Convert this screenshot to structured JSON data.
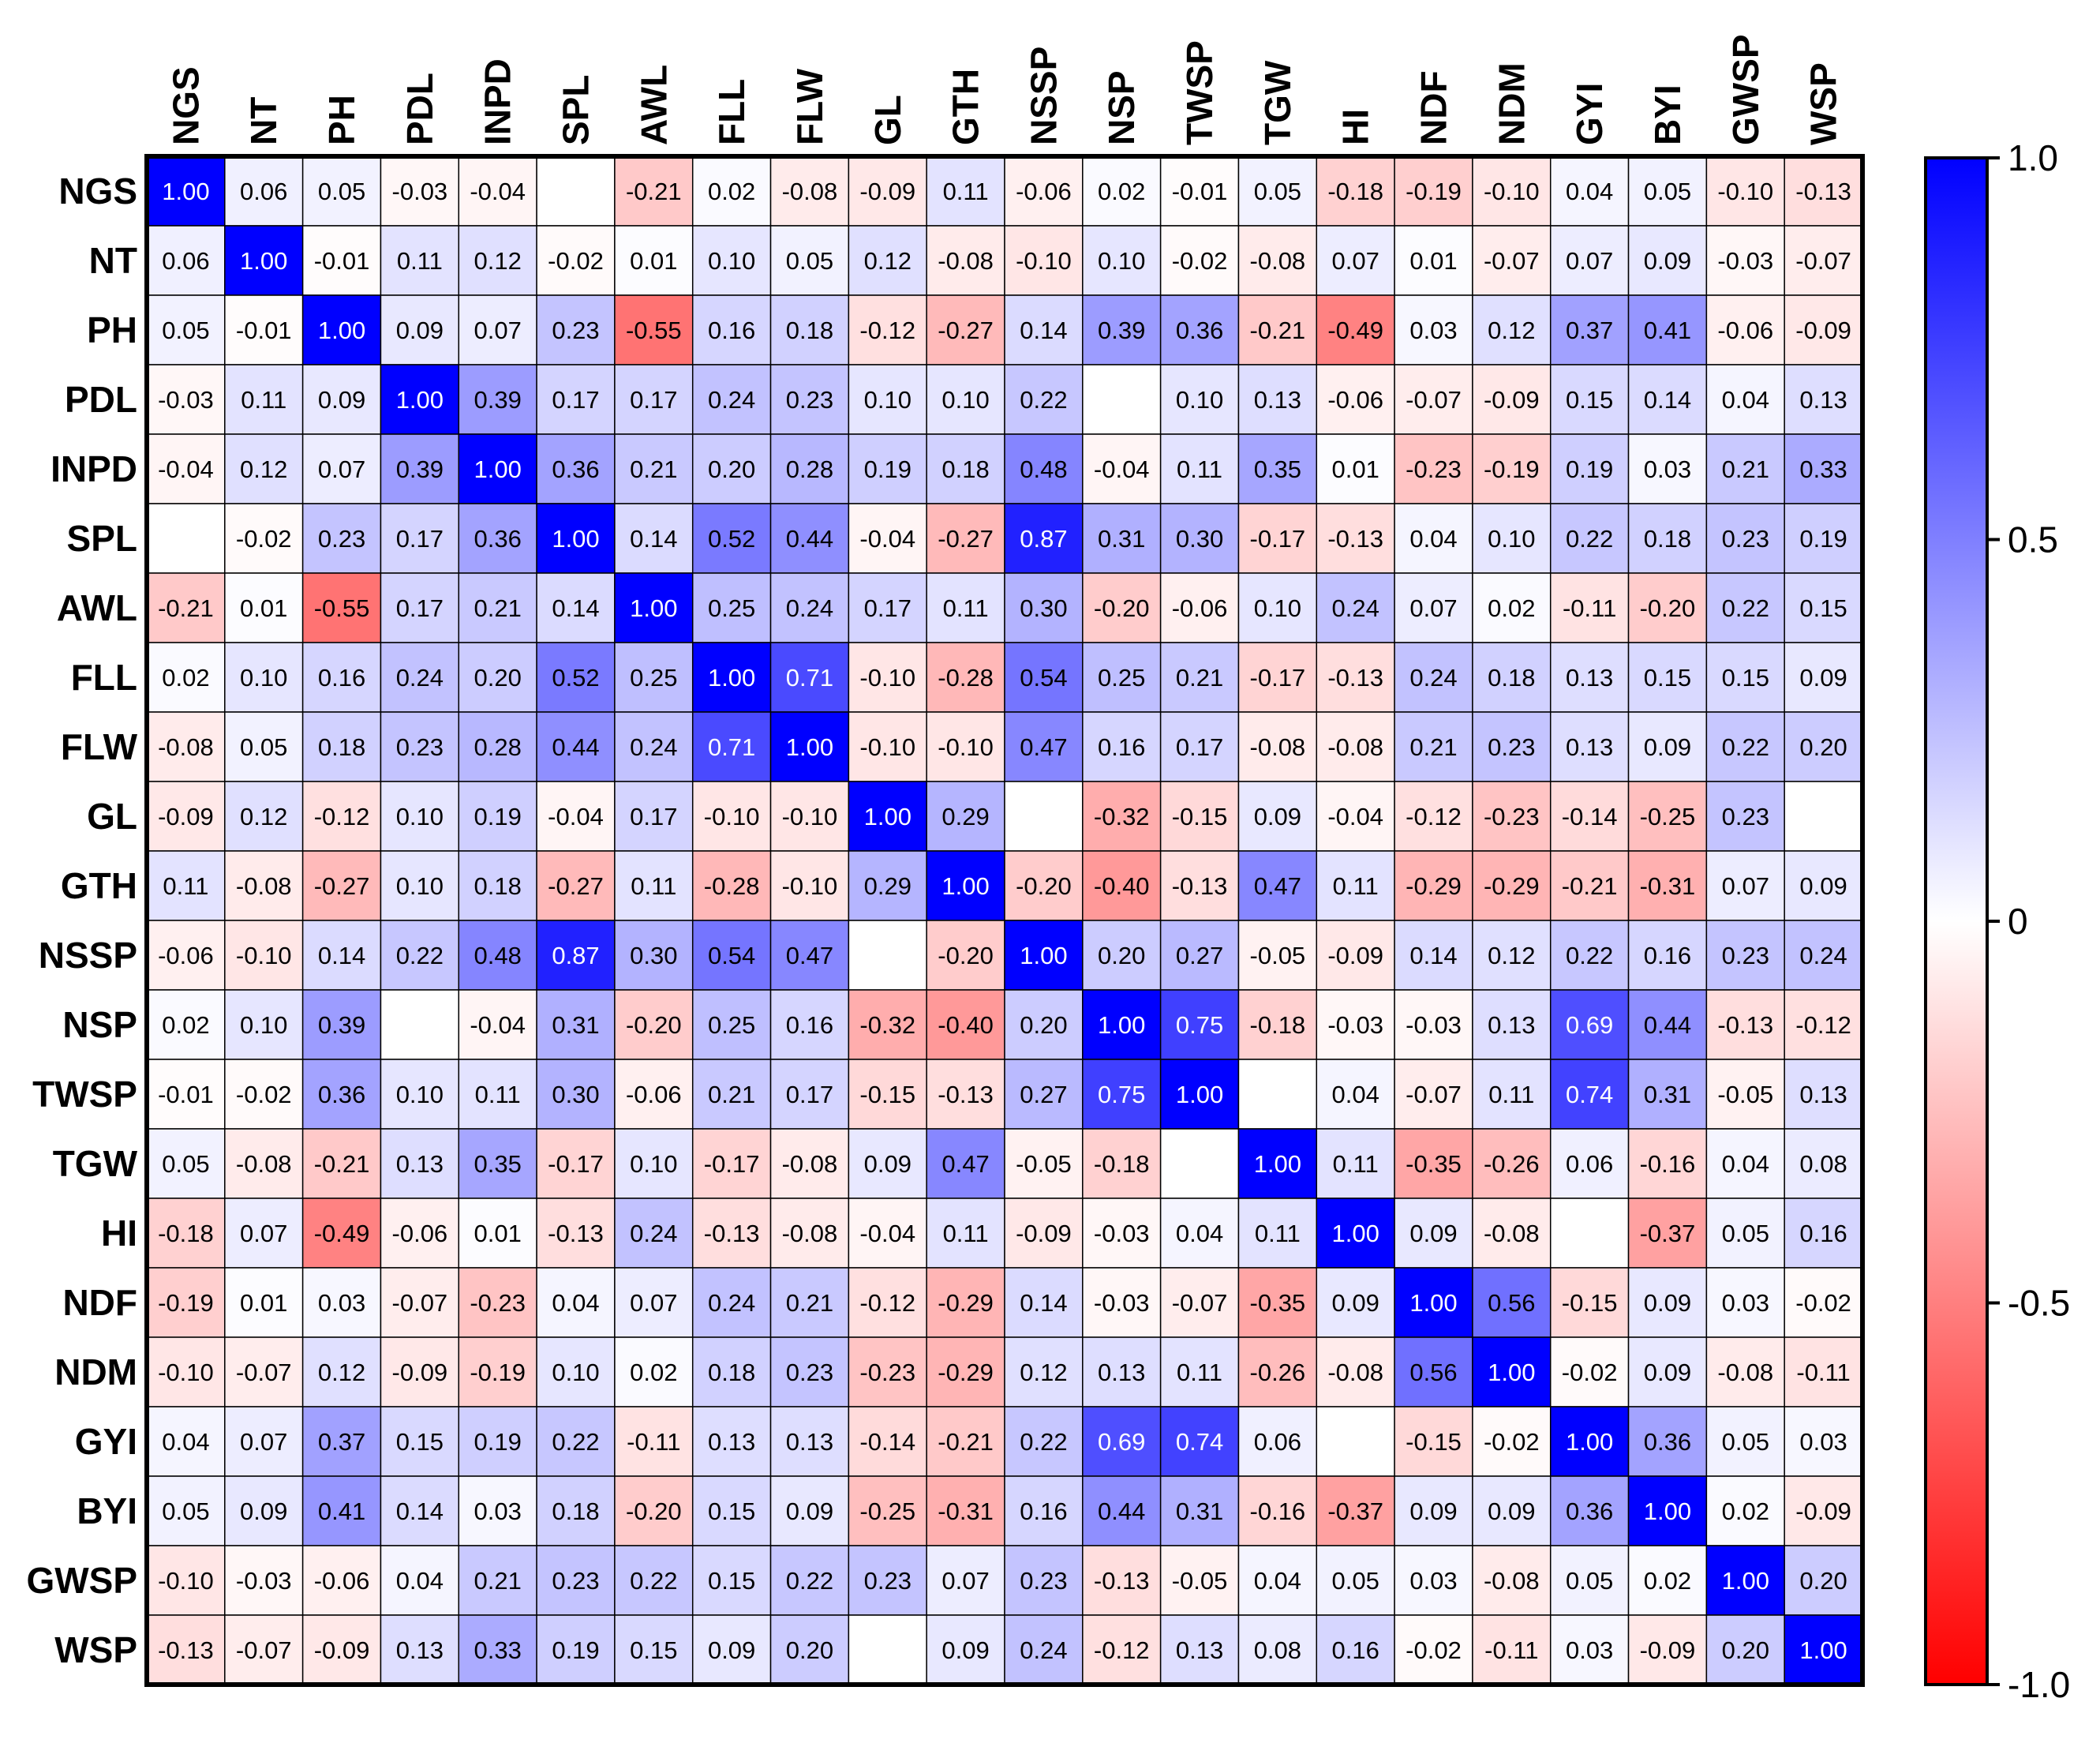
{
  "chart_data": {
    "type": "heatmap",
    "title": "",
    "xlabel": "",
    "ylabel": "",
    "variables": [
      "NGS",
      "NT",
      "PH",
      "PDL",
      "INPD",
      "SPL",
      "AWL",
      "FLL",
      "FLW",
      "GL",
      "GTH",
      "NSSP",
      "NSP",
      "TWSP",
      "TGW",
      "HI",
      "NDF",
      "NDM",
      "GYI",
      "BYI",
      "GWSP",
      "WSP"
    ],
    "matrix": [
      [
        "1.00",
        "0.06",
        "0.05",
        "-0.03",
        "-0.04",
        "",
        "-0.21",
        "0.02",
        "-0.08",
        "-0.09",
        "0.11",
        "-0.06",
        "0.02",
        "-0.01",
        "0.05",
        "-0.18",
        "-0.19",
        "-0.10",
        "0.04",
        "0.05",
        "-0.10",
        "-0.13"
      ],
      [
        "0.06",
        "1.00",
        "-0.01",
        "0.11",
        "0.12",
        "-0.02",
        "0.01",
        "0.10",
        "0.05",
        "0.12",
        "-0.08",
        "-0.10",
        "0.10",
        "-0.02",
        "-0.08",
        "0.07",
        "0.01",
        "-0.07",
        "0.07",
        "0.09",
        "-0.03",
        "-0.07"
      ],
      [
        "0.05",
        "-0.01",
        "1.00",
        "0.09",
        "0.07",
        "0.23",
        "-0.55",
        "0.16",
        "0.18",
        "-0.12",
        "-0.27",
        "0.14",
        "0.39",
        "0.36",
        "-0.21",
        "-0.49",
        "0.03",
        "0.12",
        "0.37",
        "0.41",
        "-0.06",
        "-0.09"
      ],
      [
        "-0.03",
        "0.11",
        "0.09",
        "1.00",
        "0.39",
        "0.17",
        "0.17",
        "0.24",
        "0.23",
        "0.10",
        "0.10",
        "0.22",
        "",
        "0.10",
        "0.13",
        "-0.06",
        "-0.07",
        "-0.09",
        "0.15",
        "0.14",
        "0.04",
        "0.13"
      ],
      [
        "-0.04",
        "0.12",
        "0.07",
        "0.39",
        "1.00",
        "0.36",
        "0.21",
        "0.20",
        "0.28",
        "0.19",
        "0.18",
        "0.48",
        "-0.04",
        "0.11",
        "0.35",
        "0.01",
        "-0.23",
        "-0.19",
        "0.19",
        "0.03",
        "0.21",
        "0.33"
      ],
      [
        "",
        "-0.02",
        "0.23",
        "0.17",
        "0.36",
        "1.00",
        "0.14",
        "0.52",
        "0.44",
        "-0.04",
        "-0.27",
        "0.87",
        "0.31",
        "0.30",
        "-0.17",
        "-0.13",
        "0.04",
        "0.10",
        "0.22",
        "0.18",
        "0.23",
        "0.19"
      ],
      [
        "-0.21",
        "0.01",
        "-0.55",
        "0.17",
        "0.21",
        "0.14",
        "1.00",
        "0.25",
        "0.24",
        "0.17",
        "0.11",
        "0.30",
        "-0.20",
        "-0.06",
        "0.10",
        "0.24",
        "0.07",
        "0.02",
        "-0.11",
        "-0.20",
        "0.22",
        "0.15"
      ],
      [
        "0.02",
        "0.10",
        "0.16",
        "0.24",
        "0.20",
        "0.52",
        "0.25",
        "1.00",
        "0.71",
        "-0.10",
        "-0.28",
        "0.54",
        "0.25",
        "0.21",
        "-0.17",
        "-0.13",
        "0.24",
        "0.18",
        "0.13",
        "0.15",
        "0.15",
        "0.09"
      ],
      [
        "-0.08",
        "0.05",
        "0.18",
        "0.23",
        "0.28",
        "0.44",
        "0.24",
        "0.71",
        "1.00",
        "-0.10",
        "-0.10",
        "0.47",
        "0.16",
        "0.17",
        "-0.08",
        "-0.08",
        "0.21",
        "0.23",
        "0.13",
        "0.09",
        "0.22",
        "0.20"
      ],
      [
        "-0.09",
        "0.12",
        "-0.12",
        "0.10",
        "0.19",
        "-0.04",
        "0.17",
        "-0.10",
        "-0.10",
        "1.00",
        "0.29",
        "",
        "-0.32",
        "-0.15",
        "0.09",
        "-0.04",
        "-0.12",
        "-0.23",
        "-0.14",
        "-0.25",
        "0.23",
        ""
      ],
      [
        "0.11",
        "-0.08",
        "-0.27",
        "0.10",
        "0.18",
        "-0.27",
        "0.11",
        "-0.28",
        "-0.10",
        "0.29",
        "1.00",
        "-0.20",
        "-0.40",
        "-0.13",
        "0.47",
        "0.11",
        "-0.29",
        "-0.29",
        "-0.21",
        "-0.31",
        "0.07",
        "0.09"
      ],
      [
        "-0.06",
        "-0.10",
        "0.14",
        "0.22",
        "0.48",
        "0.87",
        "0.30",
        "0.54",
        "0.47",
        "",
        "-0.20",
        "1.00",
        "0.20",
        "0.27",
        "-0.05",
        "-0.09",
        "0.14",
        "0.12",
        "0.22",
        "0.16",
        "0.23",
        "0.24"
      ],
      [
        "0.02",
        "0.10",
        "0.39",
        "",
        "-0.04",
        "0.31",
        "-0.20",
        "0.25",
        "0.16",
        "-0.32",
        "-0.40",
        "0.20",
        "1.00",
        "0.75",
        "-0.18",
        "-0.03",
        "-0.03",
        "0.13",
        "0.69",
        "0.44",
        "-0.13",
        "-0.12"
      ],
      [
        "-0.01",
        "-0.02",
        "0.36",
        "0.10",
        "0.11",
        "0.30",
        "-0.06",
        "0.21",
        "0.17",
        "-0.15",
        "-0.13",
        "0.27",
        "0.75",
        "1.00",
        "",
        "0.04",
        "-0.07",
        "0.11",
        "0.74",
        "0.31",
        "-0.05",
        "0.13"
      ],
      [
        "0.05",
        "-0.08",
        "-0.21",
        "0.13",
        "0.35",
        "-0.17",
        "0.10",
        "-0.17",
        "-0.08",
        "0.09",
        "0.47",
        "-0.05",
        "-0.18",
        "",
        "1.00",
        "0.11",
        "-0.35",
        "-0.26",
        "0.06",
        "-0.16",
        "0.04",
        "0.08"
      ],
      [
        "-0.18",
        "0.07",
        "-0.49",
        "-0.06",
        "0.01",
        "-0.13",
        "0.24",
        "-0.13",
        "-0.08",
        "-0.04",
        "0.11",
        "-0.09",
        "-0.03",
        "0.04",
        "0.11",
        "1.00",
        "0.09",
        "-0.08",
        "",
        "-0.37",
        "0.05",
        "0.16"
      ],
      [
        "-0.19",
        "0.01",
        "0.03",
        "-0.07",
        "-0.23",
        "0.04",
        "0.07",
        "0.24",
        "0.21",
        "-0.12",
        "-0.29",
        "0.14",
        "-0.03",
        "-0.07",
        "-0.35",
        "0.09",
        "1.00",
        "0.56",
        "-0.15",
        "0.09",
        "0.03",
        "-0.02"
      ],
      [
        "-0.10",
        "-0.07",
        "0.12",
        "-0.09",
        "-0.19",
        "0.10",
        "0.02",
        "0.18",
        "0.23",
        "-0.23",
        "-0.29",
        "0.12",
        "0.13",
        "0.11",
        "-0.26",
        "-0.08",
        "0.56",
        "1.00",
        "-0.02",
        "0.09",
        "-0.08",
        "-0.11"
      ],
      [
        "0.04",
        "0.07",
        "0.37",
        "0.15",
        "0.19",
        "0.22",
        "-0.11",
        "0.13",
        "0.13",
        "-0.14",
        "-0.21",
        "0.22",
        "0.69",
        "0.74",
        "0.06",
        "",
        "-0.15",
        "-0.02",
        "1.00",
        "0.36",
        "0.05",
        "0.03"
      ],
      [
        "0.05",
        "0.09",
        "0.41",
        "0.14",
        "0.03",
        "0.18",
        "-0.20",
        "0.15",
        "0.09",
        "-0.25",
        "-0.31",
        "0.16",
        "0.44",
        "0.31",
        "-0.16",
        "-0.37",
        "0.09",
        "0.09",
        "0.36",
        "1.00",
        "0.02",
        "-0.09"
      ],
      [
        "-0.10",
        "-0.03",
        "-0.06",
        "0.04",
        "0.21",
        "0.23",
        "0.22",
        "0.15",
        "0.22",
        "0.23",
        "0.07",
        "0.23",
        "-0.13",
        "-0.05",
        "0.04",
        "0.05",
        "0.03",
        "-0.08",
        "0.05",
        "0.02",
        "1.00",
        "0.20"
      ],
      [
        "-0.13",
        "-0.07",
        "-0.09",
        "0.13",
        "0.33",
        "0.19",
        "0.15",
        "0.09",
        "0.20",
        "",
        "0.09",
        "0.24",
        "-0.12",
        "0.13",
        "0.08",
        "0.16",
        "-0.02",
        "-0.11",
        "0.03",
        "-0.09",
        "0.20",
        "1.00"
      ]
    ],
    "color_scale": {
      "min": -1.0,
      "max": 1.0,
      "min_color": "#ff0000",
      "mid_color": "#ffffff",
      "max_color": "#0000ff",
      "ticks": [
        "1.0",
        "0.5",
        "0",
        "-0.5",
        "-1.0"
      ]
    },
    "grid": true,
    "legend_position": "right"
  }
}
